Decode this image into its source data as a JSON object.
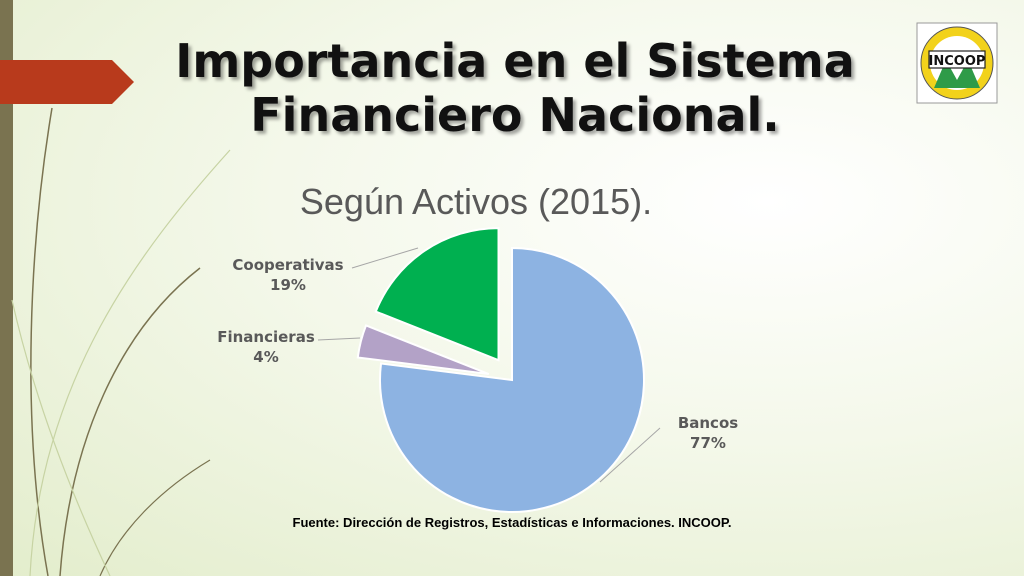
{
  "slide": {
    "title_line1": "Importancia en el Sistema",
    "title_line2": "Financiero Nacional.",
    "source": "Fuente: Dirección de Registros, Estadísticas e Informaciones. INCOOP."
  },
  "logo": {
    "text": "INCOOP",
    "colors": {
      "ring": "#f2d21b",
      "green": "#2e9b48",
      "border": "#222222"
    }
  },
  "chart_data": {
    "type": "pie",
    "title": "Según Activos (2015).",
    "categories": [
      "Bancos",
      "Financieras",
      "Cooperativas"
    ],
    "values": [
      77,
      4,
      19
    ],
    "labels": [
      "77%",
      "4%",
      "19%"
    ],
    "colors": [
      "#8db3e2",
      "#b3a2c7",
      "#00b050"
    ],
    "exploded": [
      false,
      true,
      true
    ],
    "legend": "none"
  },
  "accent_colors": {
    "arrow": "#b83a1c",
    "left_bar": "#7a7350",
    "decor_lines": "#6e6a45"
  }
}
